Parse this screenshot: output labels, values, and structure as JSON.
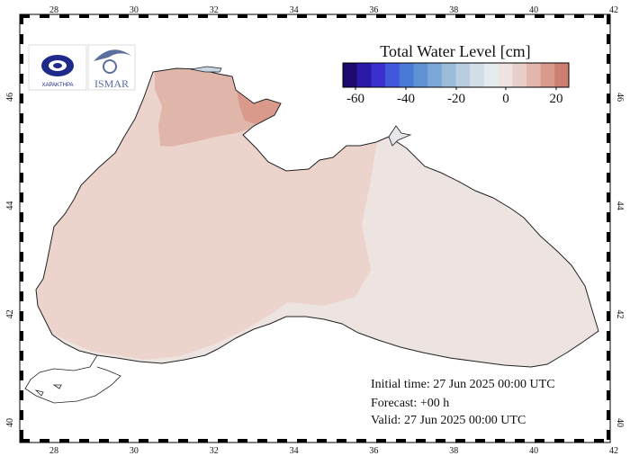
{
  "map": {
    "lon_ticks": [
      "28",
      "30",
      "32",
      "34",
      "36",
      "38",
      "40",
      "42"
    ],
    "lat_ticks": [
      "40",
      "42",
      "44",
      "46"
    ]
  },
  "logos": {
    "left_text": "ΧΑΡΑΚΤΗΡΑ",
    "right_text": "ISMAR"
  },
  "legend": {
    "title": "Total Water Level [cm]",
    "ticks": [
      "-60",
      "-40",
      "-20",
      "0",
      "20"
    ],
    "colors": [
      "#1c0a6e",
      "#2a1aa8",
      "#3b2fd0",
      "#3f58dc",
      "#4a7ad8",
      "#5f93d6",
      "#7ba8d8",
      "#9bbcd9",
      "#b8cde0",
      "#d2dde8",
      "#e6ebef",
      "#efe3e1",
      "#e9cfc9",
      "#e2b6ac",
      "#d89a8b",
      "#cd806f"
    ]
  },
  "field_colors": {
    "east": "#ede4e2",
    "west": "#ecd3cc",
    "north": "#e0b6ab",
    "azov": "#d99a8c"
  },
  "info": {
    "initial": "Initial time: 27 Jun 2025 00:00 UTC",
    "forecast": "Forecast: +00 h",
    "valid": "Valid: 27 Jun 2025 00:00 UTC"
  }
}
